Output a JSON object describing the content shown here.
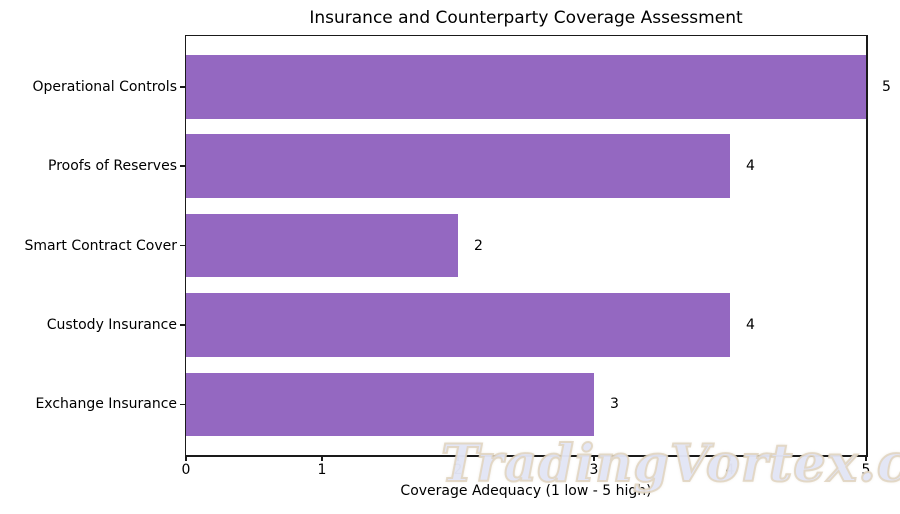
{
  "watermark": {
    "text": "TradingVortex.com"
  },
  "chart_data": {
    "type": "bar",
    "orientation": "horizontal",
    "title": "Insurance and Counterparty Coverage Assessment",
    "categories": [
      "Operational Controls",
      "Proofs of Reserves",
      "Smart Contract Cover",
      "Custody Insurance",
      "Exchange Insurance"
    ],
    "values": [
      5,
      4,
      2,
      4,
      3
    ],
    "value_labels": [
      "5",
      "4",
      "2",
      "4",
      "3"
    ],
    "xlabel": "Coverage Adequacy (1 low - 5 high)",
    "xlim": [
      0,
      5
    ],
    "xticks": [
      "0",
      "1",
      "2",
      "3",
      "4",
      "5"
    ],
    "bar_color": "#9468c1",
    "spine_color": "#1a1a1a",
    "text_color": "#000000",
    "grid": false,
    "legend": false
  }
}
